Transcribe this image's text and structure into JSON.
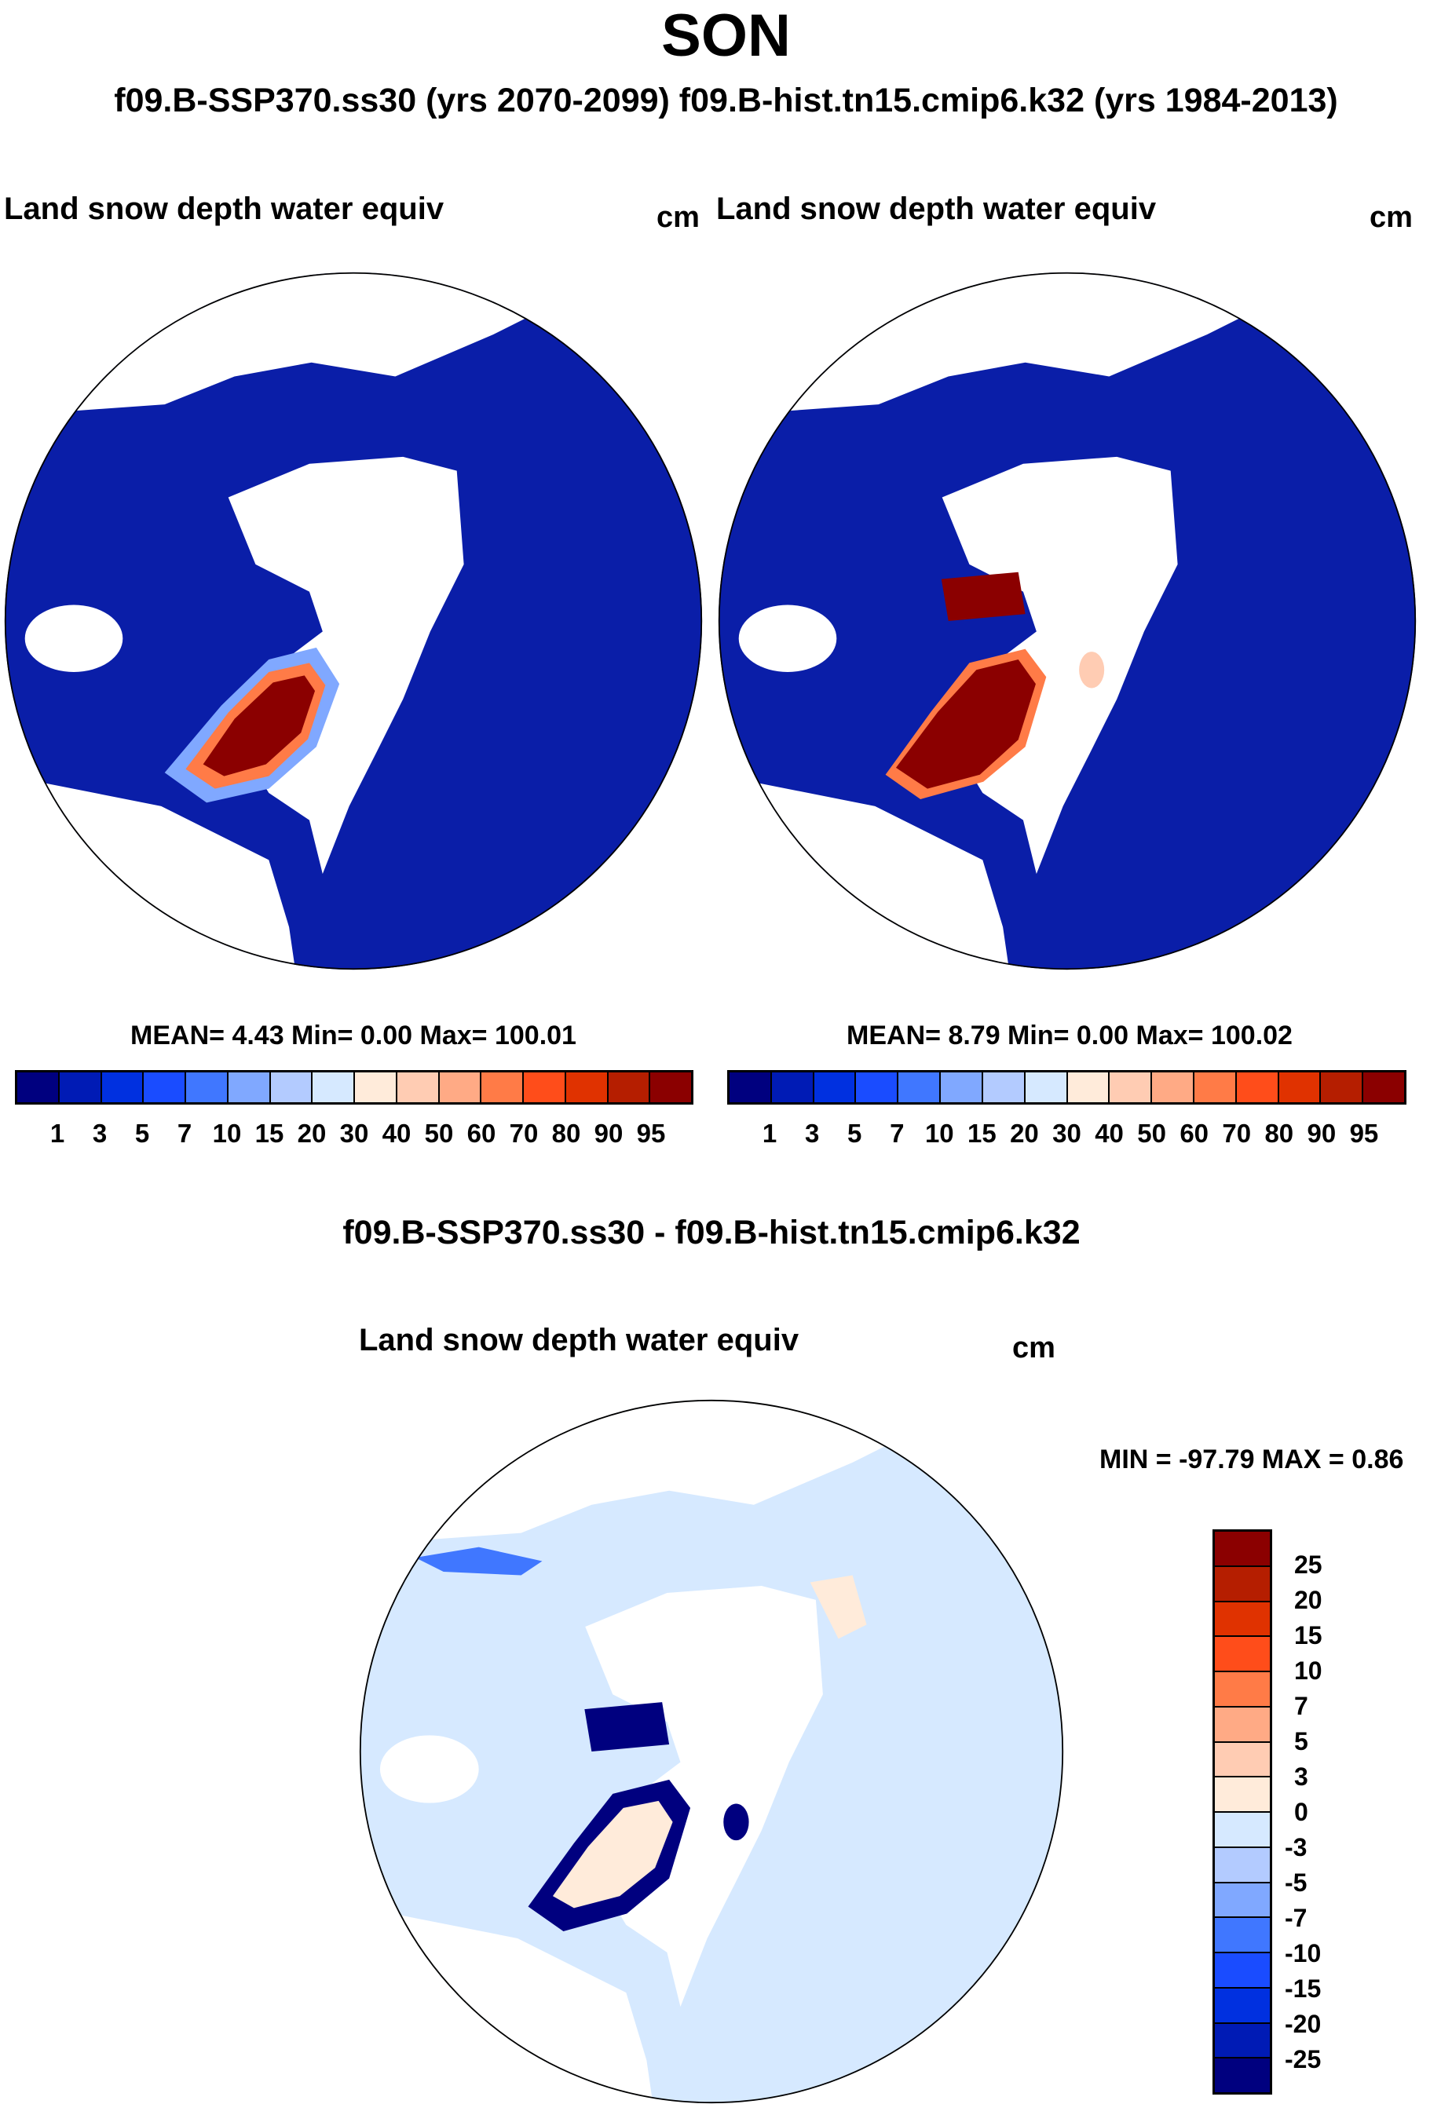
{
  "chart_data": {
    "type": "heatmap",
    "title": "SON",
    "subtitle": "f09.B-SSP370.ss30 (yrs 2070-2099)  f09.B-hist.tn15.cmip6.k32 (yrs 1984-2013)",
    "panels": [
      {
        "label": "Land snow depth water equiv",
        "units": "cm",
        "stats": "MEAN=   4.43  Min=   0.00  Max= 100.01",
        "mean": 4.43,
        "min": 0.0,
        "max": 100.01
      },
      {
        "label": "Land snow depth water equiv",
        "units": "cm",
        "stats": "MEAN=   8.79  Min=   0.00  Max= 100.02",
        "mean": 8.79,
        "min": 0.0,
        "max": 100.02
      }
    ],
    "colorbar_levels": [
      "1",
      "3",
      "5",
      "7",
      "10",
      "15",
      "20",
      "30",
      "40",
      "50",
      "60",
      "70",
      "80",
      "90",
      "95"
    ],
    "colorbar_colors": [
      "#00007f",
      "#001bb5",
      "#0030e0",
      "#1a4cff",
      "#4077ff",
      "#80a8ff",
      "#b3cbff",
      "#d6e9ff",
      "#ffebda",
      "#ffccb3",
      "#ffaa85",
      "#ff7b47",
      "#ff4d1a",
      "#e03200",
      "#b51e00",
      "#8b0000"
    ],
    "diff_title": "f09.B-SSP370.ss30 - f09.B-hist.tn15.cmip6.k32",
    "diff_panel": {
      "label": "Land snow depth water equiv",
      "units": "cm",
      "stats": "MIN = -97.79 MAX =   0.86",
      "min": -97.79,
      "max": 0.86
    },
    "diff_levels": [
      "25",
      "20",
      "15",
      "10",
      "7",
      "5",
      "3",
      "0",
      "-3",
      "-5",
      "-7",
      "-10",
      "-15",
      "-20",
      "-25"
    ],
    "diff_colors": [
      "#8b0000",
      "#b51e00",
      "#e03200",
      "#ff4d1a",
      "#ff7b47",
      "#ffaa85",
      "#ffccb3",
      "#ffebda",
      "#d6e9ff",
      "#b3cbff",
      "#80a8ff",
      "#4077ff",
      "#1a4cff",
      "#0030e0",
      "#001bb5",
      "#00007f"
    ]
  }
}
